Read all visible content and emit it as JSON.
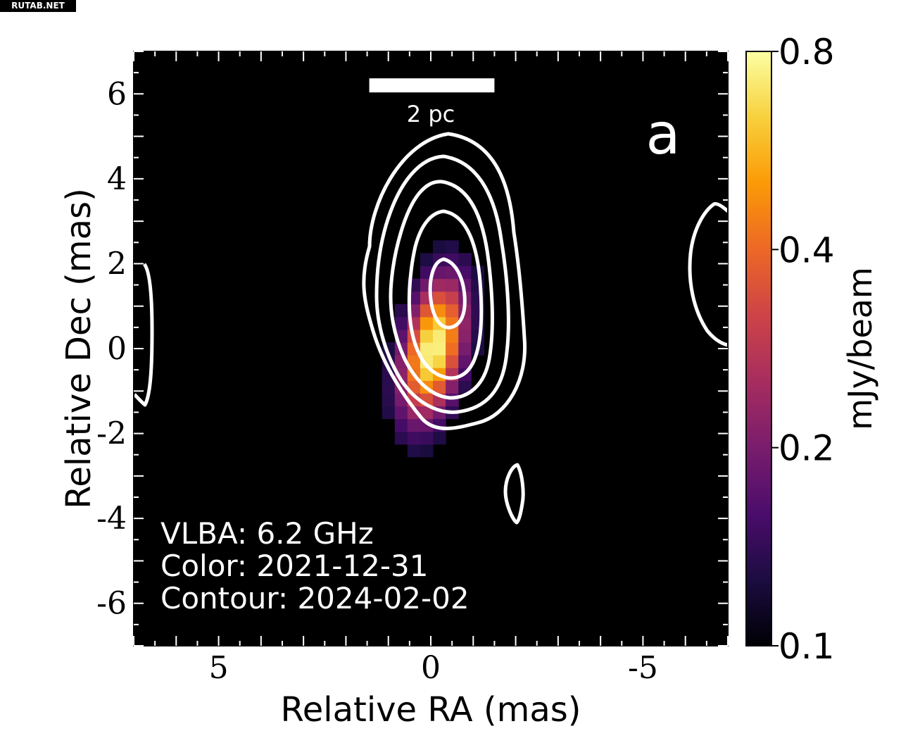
{
  "watermark": "RUTAB.NET",
  "chart_data": {
    "type": "heatmap",
    "xlabel": "Relative RA (mas)",
    "ylabel": "Relative Dec (mas)",
    "xlim": [
      7,
      -7
    ],
    "ylim": [
      -7,
      7
    ],
    "x_ticks": [
      5,
      0,
      -5
    ],
    "x_tick_labels": [
      "5",
      "0",
      "-5"
    ],
    "y_ticks": [
      6,
      4,
      2,
      0,
      -2,
      -4,
      -6
    ],
    "y_tick_labels": [
      "6",
      "4",
      "2",
      "0",
      "-2",
      "-4",
      "-6"
    ],
    "panel_label": "a",
    "scalebar_label": "2 pc",
    "scalebar_ra": [
      1.45,
      -1.5
    ],
    "scalebar_dec": 6.2,
    "annotations": [
      "VLBA: 6.2 GHz",
      "Color: 2021-12-31",
      "Contour: 2024-02-02"
    ],
    "colorbar": {
      "label": "mJy/beam",
      "ticks": [
        0.8,
        0.4,
        0.2,
        0.1
      ],
      "tick_labels": [
        "0.8",
        "0.4",
        "0.2",
        "0.1"
      ],
      "range": [
        0.1,
        0.8
      ],
      "scale": "log",
      "colormap": [
        "#000004",
        "#1b0c41",
        "#4a0c6b",
        "#781c6d",
        "#a52c60",
        "#cf4446",
        "#ed6925",
        "#fb9b06",
        "#f7d13d",
        "#fcffa4"
      ]
    },
    "image_component": {
      "peak_flux": 0.8,
      "center_ra": 0.05,
      "center_dec": 0.0,
      "extent_dec": [
        -2.6,
        2.2
      ]
    },
    "contour_levels": 5,
    "contour_color": "#ffffff",
    "background_color": "#000000"
  }
}
